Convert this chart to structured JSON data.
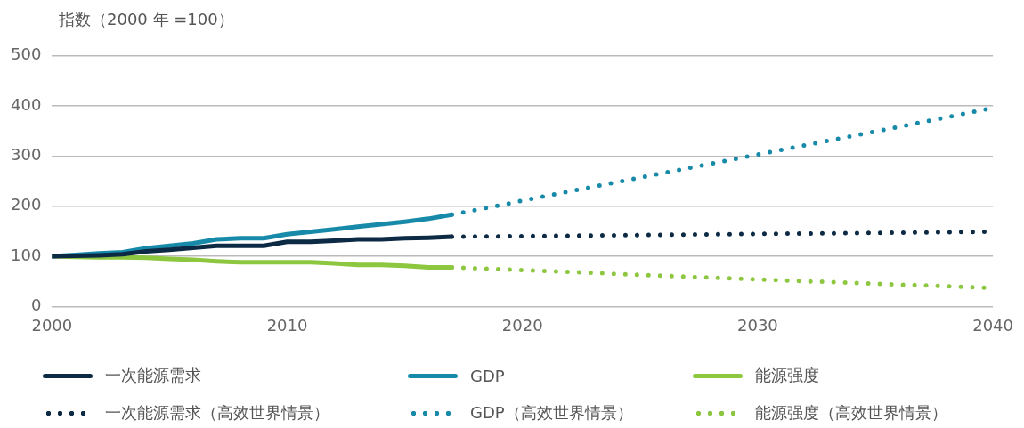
{
  "chart_data": {
    "type": "line",
    "ylabel": "指数（2000 年 =100）",
    "xlim": [
      2000,
      2040
    ],
    "xticks": [
      2000,
      2010,
      2020,
      2030,
      2040
    ],
    "ylim": [
      0,
      500
    ],
    "yticks": [
      0,
      100,
      200,
      300,
      400,
      500
    ],
    "grid": "y",
    "legend": "bottom",
    "marker": "none",
    "series": [
      {
        "name": "一次能源需求",
        "color": "#0d2a45",
        "line_style": "solid",
        "x": [
          2000,
          2001,
          2002,
          2003,
          2004,
          2005,
          2006,
          2007,
          2008,
          2009,
          2010,
          2011,
          2012,
          2013,
          2014,
          2015,
          2016,
          2017
        ],
        "values": [
          100,
          101,
          102,
          104,
          110,
          113,
          117,
          121,
          121,
          121,
          129,
          129,
          131,
          134,
          134,
          136,
          137,
          139
        ]
      },
      {
        "name": "GDP",
        "color": "#168aa8",
        "line_style": "solid",
        "x": [
          2000,
          2001,
          2002,
          2003,
          2004,
          2005,
          2006,
          2007,
          2008,
          2009,
          2010,
          2011,
          2012,
          2013,
          2014,
          2015,
          2016,
          2017
        ],
        "values": [
          100,
          103,
          106,
          108,
          116,
          121,
          126,
          134,
          136,
          136,
          144,
          149,
          154,
          159,
          164,
          169,
          175,
          183
        ]
      },
      {
        "name": "能源强度",
        "color": "#8dc63f",
        "line_style": "solid",
        "x": [
          2000,
          2001,
          2002,
          2003,
          2004,
          2005,
          2006,
          2007,
          2008,
          2009,
          2010,
          2011,
          2012,
          2013,
          2014,
          2015,
          2016,
          2017
        ],
        "values": [
          100,
          99,
          98,
          98,
          97,
          95,
          93,
          90,
          88,
          88,
          88,
          88,
          86,
          83,
          83,
          81,
          78,
          78
        ]
      },
      {
        "name": "一次能源需求（高效世界情景）",
        "color": "#0d2a45",
        "line_style": "dotted",
        "x": [
          2017,
          2040
        ],
        "values": [
          139,
          149
        ]
      },
      {
        "name": "GDP（高效世界情景）",
        "color": "#168aa8",
        "line_style": "dotted",
        "x": [
          2017,
          2020,
          2025,
          2030,
          2035,
          2040
        ],
        "values": [
          183,
          211,
          257,
          303,
          349,
          396
        ]
      },
      {
        "name": "能源强度（高效世界情景）",
        "color": "#8dc63f",
        "line_style": "dotted",
        "x": [
          2017,
          2030,
          2040
        ],
        "values": [
          78,
          54,
          37
        ]
      }
    ]
  }
}
